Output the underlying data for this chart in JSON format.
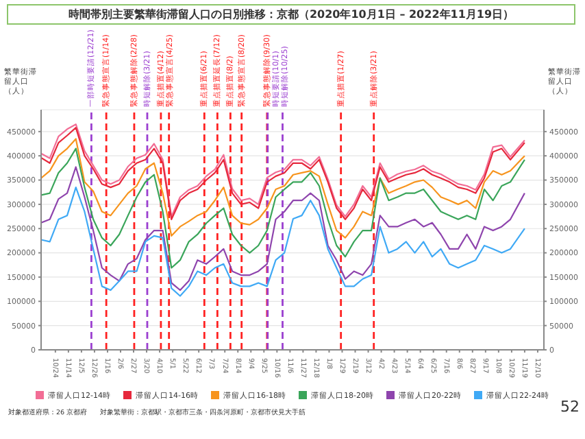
{
  "chart_data": {
    "type": "line",
    "title": "時間帯別主要繁華街滞留人口の日別推移：京都（2020年10月1日 – 2022年11月19日）",
    "ylabel": "繁華街滞留人口（人）",
    "y2label": "繁華街滞留人口（人）",
    "x": [
      "2020-10-01",
      "2020-10-15",
      "2020-10-29",
      "2020-11-12",
      "2020-11-26",
      "2020-12-10",
      "2020-12-24",
      "2021-01-07",
      "2021-01-21",
      "2021-02-04",
      "2021-02-18",
      "2021-03-04",
      "2021-03-18",
      "2021-04-01",
      "2021-04-15",
      "2021-04-29",
      "2021-05-13",
      "2021-05-27",
      "2021-06-10",
      "2021-06-24",
      "2021-07-08",
      "2021-07-22",
      "2021-08-05",
      "2021-08-19",
      "2021-09-02",
      "2021-09-16",
      "2021-09-30",
      "2021-10-14",
      "2021-10-28",
      "2021-11-11",
      "2021-11-25",
      "2021-12-09",
      "2021-12-23",
      "2022-01-06",
      "2022-01-20",
      "2022-02-03",
      "2022-02-17",
      "2022-03-03",
      "2022-03-17",
      "2022-03-31",
      "2022-04-14",
      "2022-04-28",
      "2022-05-12",
      "2022-05-26",
      "2022-06-09",
      "2022-06-23",
      "2022-07-07",
      "2022-07-21",
      "2022-08-04",
      "2022-08-18",
      "2022-09-01",
      "2022-09-15",
      "2022-09-29",
      "2022-10-13",
      "2022-10-27",
      "2022-11-19"
    ],
    "series": [
      {
        "name": "滞留人口12-14時",
        "color": "#f26d95",
        "values": [
          405000,
          395000,
          440000,
          455000,
          465000,
          410000,
          380000,
          350000,
          342000,
          350000,
          378000,
          395000,
          402000,
          425000,
          392000,
          275000,
          315000,
          330000,
          338000,
          358000,
          372000,
          402000,
          332000,
          308000,
          312000,
          300000,
          355000,
          366000,
          372000,
          392000,
          392000,
          380000,
          398000,
          352000,
          298000,
          275000,
          300000,
          338000,
          315000,
          385000,
          352000,
          362000,
          368000,
          372000,
          380000,
          368000,
          362000,
          352000,
          342000,
          338000,
          330000,
          362000,
          418000,
          422000,
          398000,
          432000
        ]
      },
      {
        "name": "滞留人口14-16時",
        "color": "#e6283c",
        "values": [
          396000,
          385000,
          427000,
          442000,
          458000,
          400000,
          373000,
          342000,
          335000,
          342000,
          369000,
          385000,
          392000,
          415000,
          385000,
          269000,
          308000,
          323000,
          331000,
          350000,
          365000,
          392000,
          323000,
          300000,
          304000,
          292000,
          346000,
          358000,
          365000,
          385000,
          385000,
          373000,
          392000,
          346000,
          292000,
          269000,
          292000,
          331000,
          308000,
          377000,
          346000,
          354000,
          361000,
          365000,
          373000,
          361000,
          354000,
          346000,
          335000,
          331000,
          323000,
          354000,
          408000,
          415000,
          392000,
          427000
        ]
      },
      {
        "name": "滞留人口16-18時",
        "color": "#f7941d",
        "values": [
          354000,
          369000,
          400000,
          415000,
          435000,
          346000,
          327000,
          285000,
          277000,
          300000,
          323000,
          338000,
          373000,
          385000,
          323000,
          235000,
          254000,
          265000,
          277000,
          285000,
          308000,
          335000,
          277000,
          261000,
          258000,
          269000,
          292000,
          331000,
          338000,
          361000,
          365000,
          369000,
          358000,
          300000,
          246000,
          231000,
          254000,
          285000,
          277000,
          354000,
          323000,
          331000,
          338000,
          346000,
          350000,
          335000,
          315000,
          308000,
          300000,
          308000,
          292000,
          346000,
          369000,
          361000,
          369000,
          400000
        ]
      },
      {
        "name": "滞留人口18-20時",
        "color": "#3aa55a",
        "values": [
          319000,
          323000,
          365000,
          385000,
          415000,
          335000,
          269000,
          231000,
          215000,
          238000,
          277000,
          315000,
          346000,
          361000,
          285000,
          169000,
          185000,
          223000,
          238000,
          261000,
          277000,
          292000,
          238000,
          215000,
          200000,
          215000,
          246000,
          315000,
          331000,
          346000,
          346000,
          365000,
          338000,
          269000,
          215000,
          192000,
          223000,
          246000,
          246000,
          354000,
          308000,
          315000,
          323000,
          323000,
          331000,
          308000,
          285000,
          277000,
          269000,
          277000,
          269000,
          331000,
          308000,
          338000,
          346000,
          392000
        ]
      },
      {
        "name": "滞留人口20-22時",
        "color": "#8e44ad",
        "values": [
          262000,
          269000,
          311000,
          323000,
          377000,
          315000,
          246000,
          169000,
          154000,
          142000,
          177000,
          188000,
          227000,
          246000,
          246000,
          138000,
          123000,
          142000,
          185000,
          177000,
          192000,
          208000,
          162000,
          154000,
          154000,
          162000,
          177000,
          269000,
          285000,
          308000,
          308000,
          323000,
          308000,
          215000,
          185000,
          146000,
          162000,
          154000,
          177000,
          277000,
          254000,
          254000,
          262000,
          269000,
          254000,
          262000,
          238000,
          208000,
          208000,
          238000,
          208000,
          254000,
          246000,
          254000,
          269000,
          323000
        ]
      },
      {
        "name": "滞留人口22-24時",
        "color": "#3fa9f5",
        "values": [
          227000,
          223000,
          269000,
          277000,
          335000,
          285000,
          208000,
          131000,
          123000,
          142000,
          162000,
          162000,
          223000,
          235000,
          231000,
          127000,
          111000,
          131000,
          162000,
          154000,
          169000,
          177000,
          138000,
          131000,
          131000,
          138000,
          131000,
          185000,
          200000,
          270000,
          277000,
          308000,
          277000,
          208000,
          169000,
          131000,
          131000,
          146000,
          154000,
          254000,
          200000,
          208000,
          223000,
          200000,
          223000,
          192000,
          208000,
          177000,
          169000,
          177000,
          185000,
          215000,
          208000,
          200000,
          208000,
          250000
        ]
      }
    ],
    "xlim": [
      "2020-10-01",
      "2022-12-20"
    ],
    "xticks": [
      {
        "value": "2020-10-24",
        "label": "10/24"
      },
      {
        "value": "2020-11-14",
        "label": "11/14"
      },
      {
        "value": "2020-12-05",
        "label": "12/5"
      },
      {
        "value": "2020-12-26",
        "label": "12/26"
      },
      {
        "value": "2021-01-16",
        "label": "1/16"
      },
      {
        "value": "2021-02-06",
        "label": "2/6"
      },
      {
        "value": "2021-02-27",
        "label": "2/27"
      },
      {
        "value": "2021-03-20",
        "label": "3/20"
      },
      {
        "value": "2021-04-10",
        "label": "4/10"
      },
      {
        "value": "2021-05-01",
        "label": "5/1"
      },
      {
        "value": "2021-05-22",
        "label": "5/22"
      },
      {
        "value": "2021-06-12",
        "label": "6/12"
      },
      {
        "value": "2021-07-03",
        "label": "7/3"
      },
      {
        "value": "2021-07-24",
        "label": "7/24"
      },
      {
        "value": "2021-08-14",
        "label": "8/14"
      },
      {
        "value": "2021-09-04",
        "label": "9/4"
      },
      {
        "value": "2021-09-25",
        "label": "9/25"
      },
      {
        "value": "2021-10-16",
        "label": "10/16"
      },
      {
        "value": "2021-11-06",
        "label": "11/6"
      },
      {
        "value": "2021-11-27",
        "label": "11/27"
      },
      {
        "value": "2021-12-18",
        "label": "12/18"
      },
      {
        "value": "2022-01-08",
        "label": "1/8"
      },
      {
        "value": "2022-01-29",
        "label": "1/29"
      },
      {
        "value": "2022-02-19",
        "label": "2/19"
      },
      {
        "value": "2022-03-12",
        "label": "3/12"
      },
      {
        "value": "2022-04-02",
        "label": "4/2"
      },
      {
        "value": "2022-04-23",
        "label": "4/23"
      },
      {
        "value": "2022-05-14",
        "label": "5/14"
      },
      {
        "value": "2022-06-04",
        "label": "6/4"
      },
      {
        "value": "2022-06-25",
        "label": "6/25"
      },
      {
        "value": "2022-07-16",
        "label": "7/16"
      },
      {
        "value": "2022-08-06",
        "label": "8/6"
      },
      {
        "value": "2022-08-27",
        "label": "8/27"
      },
      {
        "value": "2022-09-17",
        "label": "9/17"
      },
      {
        "value": "2022-10-08",
        "label": "10/8"
      },
      {
        "value": "2022-10-29",
        "label": "10/29"
      },
      {
        "value": "2022-11-19",
        "label": "11/19"
      },
      {
        "value": "2022-12-10",
        "label": "12/10"
      }
    ],
    "ylim": [
      0,
      495000
    ],
    "yticks": [
      0,
      50000,
      100000,
      150000,
      200000,
      250000,
      300000,
      350000,
      400000,
      450000
    ],
    "y2lim": [
      0,
      495000
    ],
    "y2ticks": [
      0,
      50000,
      100000,
      150000,
      200000,
      250000,
      300000,
      350000,
      400000,
      450000
    ],
    "ref_lines": [
      {
        "axis": "x",
        "value": "2020-12-21",
        "label": "一部時短要請(12/21)",
        "color": "#9b3fd0",
        "line_style": "dashed"
      },
      {
        "axis": "x",
        "value": "2021-01-14",
        "label": "緊急事態宣言(1/14)",
        "color": "#ff2020",
        "line_style": "dashed"
      },
      {
        "axis": "x",
        "value": "2021-02-28",
        "label": "緊急事態解除(2/28)",
        "color": "#ff2020",
        "line_style": "dashed"
      },
      {
        "axis": "x",
        "value": "2021-03-21",
        "label": "時短解除(3/21)",
        "color": "#9b3fd0",
        "line_style": "dashed"
      },
      {
        "axis": "x",
        "value": "2021-04-12",
        "label": "重点措置(4/12)",
        "color": "#ff2020",
        "line_style": "dashed"
      },
      {
        "axis": "x",
        "value": "2021-04-25",
        "label": "緊急事態宣言(4/25)",
        "color": "#ff2020",
        "line_style": "dashed"
      },
      {
        "axis": "x",
        "value": "2021-06-21",
        "label": "重点措置(6/21)",
        "color": "#ff2020",
        "line_style": "dashed"
      },
      {
        "axis": "x",
        "value": "2021-07-12",
        "label": "重点措置延長(7/12)",
        "color": "#ff2020",
        "line_style": "dashed"
      },
      {
        "axis": "x",
        "value": "2021-08-02",
        "label": "重点措置(8/2)",
        "color": "#ff2020",
        "line_style": "dashed"
      },
      {
        "axis": "x",
        "value": "2021-08-20",
        "label": "緊急事態宣言(8/20)",
        "color": "#ff2020",
        "line_style": "dashed"
      },
      {
        "axis": "x",
        "value": "2021-09-30",
        "label": "緊急事態解除(9/30)",
        "color": "#ff2020",
        "line_style": "dashed"
      },
      {
        "axis": "x",
        "value": "2021-10-01",
        "label": "時短要請(10/1)",
        "color": "#9b3fd0",
        "line_style": "dashed"
      },
      {
        "axis": "x",
        "value": "2021-10-25",
        "label": "時短解除(10/25)",
        "color": "#9b3fd0",
        "line_style": "dashed"
      },
      {
        "axis": "x",
        "value": "2022-01-27",
        "label": "重点措置(1/27)",
        "color": "#ff2020",
        "line_style": "dashed"
      },
      {
        "axis": "x",
        "value": "2022-03-21",
        "label": "重点解除(3/21)",
        "color": "#ff2020",
        "line_style": "dashed"
      }
    ],
    "annotations": [
      "対象都道府県：26 京都府",
      "対象繁華街：京都駅・京都市三条・四条河原町・京都市伏見大手筋",
      "52"
    ],
    "grid": "y",
    "legend": "bottom",
    "marker": "none"
  }
}
